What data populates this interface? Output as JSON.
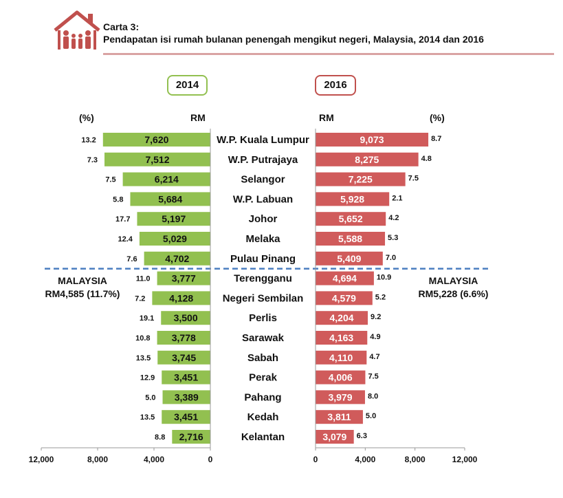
{
  "header": {
    "chart_number": "Carta 3:",
    "title": "Pendapatan isi rumah bulanan penengah mengikut negeri, Malaysia, 2014 dan 2016"
  },
  "legend": {
    "year_left": "2014",
    "year_right": "2016"
  },
  "columns": {
    "pct_left": "(%)",
    "rm_left": "RM",
    "rm_right": "RM",
    "pct_right": "(%)"
  },
  "malaysia_left": {
    "label": "MALAYSIA",
    "value": "RM4,585 (11.7%)"
  },
  "malaysia_right": {
    "label": "MALAYSIA",
    "value": "RM5,228 (6.6%)"
  },
  "colors": {
    "bar_2014": "#92c050",
    "bar_2016": "#d05b5b",
    "divider": "#4a7dc0",
    "rule": "#d9a3a3"
  },
  "chart_data": {
    "type": "bar",
    "orientation": "horizontal",
    "layout": "back-to-back",
    "categories": [
      "W.P. Kuala Lumpur",
      "W.P. Putrajaya",
      "Selangor",
      "W.P. Labuan",
      "Johor",
      "Melaka",
      "Pulau Pinang",
      "Terengganu",
      "Negeri Sembilan",
      "Perlis",
      "Sarawak",
      "Sabah",
      "Perak",
      "Pahang",
      "Kedah",
      "Kelantan"
    ],
    "series": [
      {
        "name": "2014",
        "values": [
          7620,
          7512,
          6214,
          5684,
          5197,
          5029,
          4702,
          3777,
          4128,
          3500,
          3778,
          3745,
          3451,
          3389,
          3451,
          2716
        ],
        "value_labels": [
          "7,620",
          "7,512",
          "6,214",
          "5,684",
          "5,197",
          "5,029",
          "4,702",
          "3,777",
          "4,128",
          "3,500",
          "3,778",
          "3,745",
          "3,451",
          "3,389",
          "3,451",
          "2,716"
        ],
        "growth_pct": [
          "13.2",
          "7.3",
          "7.5",
          "5.8",
          "17.7",
          "12.4",
          "7.6",
          "11.0",
          "7.2",
          "19.1",
          "10.8",
          "13.5",
          "12.9",
          "5.0",
          "13.5",
          "8.8"
        ]
      },
      {
        "name": "2016",
        "values": [
          9073,
          8275,
          7225,
          5928,
          5652,
          5588,
          5409,
          4694,
          4579,
          4204,
          4163,
          4110,
          4006,
          3979,
          3811,
          3079
        ],
        "value_labels": [
          "9,073",
          "8,275",
          "7,225",
          "5,928",
          "5,652",
          "5,588",
          "5,409",
          "4,694",
          "4,579",
          "4,204",
          "4,163",
          "4,110",
          "4,006",
          "3,979",
          "3,811",
          "3,079"
        ],
        "growth_pct": [
          "8.7",
          "4.8",
          "7.5",
          "2.1",
          "4.2",
          "5.3",
          "7.0",
          "10.9",
          "5.2",
          "9.2",
          "4.9",
          "4.7",
          "7.5",
          "8.0",
          "5.0",
          "6.3"
        ]
      }
    ],
    "xlim": [
      0,
      12000
    ],
    "x_ticks": [
      0,
      4000,
      8000,
      12000
    ],
    "x_tick_labels_left": [
      "0",
      "4,000",
      "8,000",
      "12,000"
    ],
    "x_tick_labels_right": [
      "0",
      "4,000",
      "8,000",
      "12,000"
    ]
  }
}
